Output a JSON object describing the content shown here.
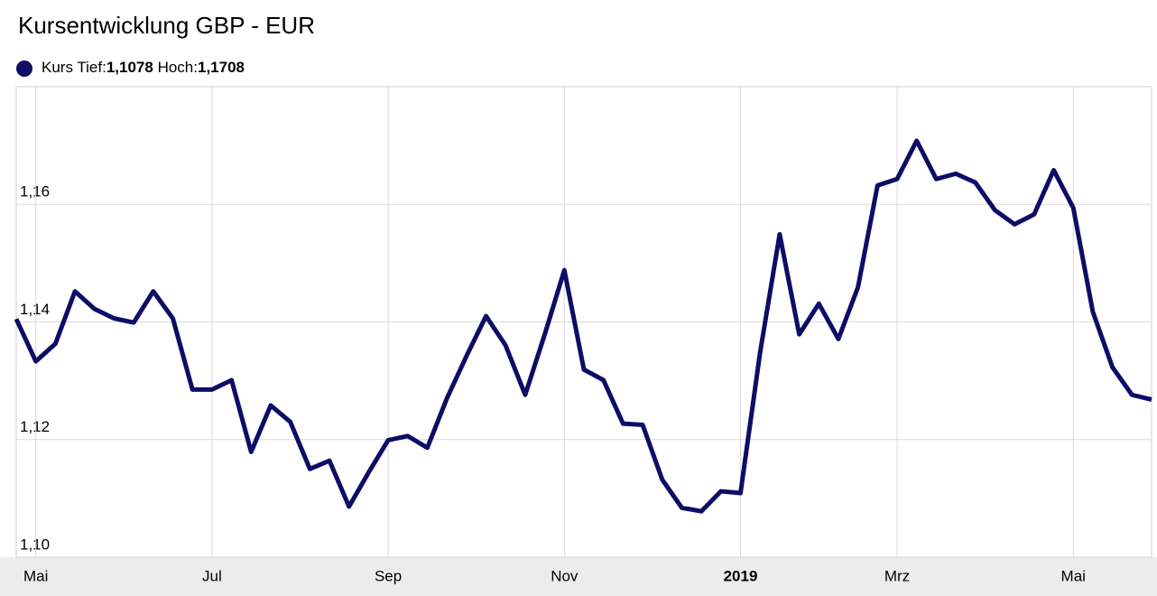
{
  "chart_data": {
    "type": "line",
    "title": "Kursentwicklung GBP - EUR",
    "legend": {
      "low_label": "Tief:",
      "low": "1,1078",
      "high_label": "Hoch:",
      "high": "1,1708"
    },
    "categories": [
      null,
      "Mai",
      null,
      null,
      null,
      null,
      null,
      null,
      null,
      null,
      "Jul",
      null,
      null,
      null,
      null,
      null,
      null,
      null,
      null,
      "Sep",
      null,
      null,
      null,
      null,
      null,
      null,
      null,
      null,
      "Nov",
      null,
      null,
      null,
      null,
      null,
      null,
      null,
      null,
      "2019",
      null,
      null,
      null,
      null,
      null,
      null,
      null,
      "Mrz",
      null,
      null,
      null,
      null,
      null,
      null,
      null,
      null,
      "Mai",
      null,
      null,
      null,
      null
    ],
    "series": [
      {
        "name": "Kurs",
        "color": "#0d0d66",
        "values": [
          1.1405,
          1.1333,
          1.1363,
          1.1452,
          1.1422,
          1.1406,
          1.1399,
          1.1452,
          1.1406,
          1.1285,
          1.1285,
          1.1301,
          1.1179,
          1.1258,
          1.123,
          1.115,
          1.1164,
          1.1086,
          1.1144,
          1.1199,
          1.1206,
          1.1186,
          1.127,
          1.1342,
          1.141,
          1.136,
          1.1276,
          1.1379,
          1.1488,
          1.1319,
          1.1301,
          1.1227,
          1.1225,
          1.1132,
          1.1084,
          1.1078,
          1.1112,
          1.1109,
          1.1348,
          1.1549,
          1.1379,
          1.1431,
          1.1371,
          1.1459,
          1.1632,
          1.1643,
          1.1708,
          1.1643,
          1.1652,
          1.1637,
          1.159,
          1.1566,
          1.1583,
          1.1658,
          1.1594,
          1.1417,
          1.1323,
          1.1276,
          1.1268
        ]
      }
    ],
    "ylim": [
      1.1,
      1.18
    ],
    "yticks": [
      {
        "value": 1.1,
        "label": "1,10"
      },
      {
        "value": 1.12,
        "label": "1,12"
      },
      {
        "value": 1.14,
        "label": "1,14"
      },
      {
        "value": 1.16,
        "label": "1,16"
      }
    ],
    "grid": true
  }
}
